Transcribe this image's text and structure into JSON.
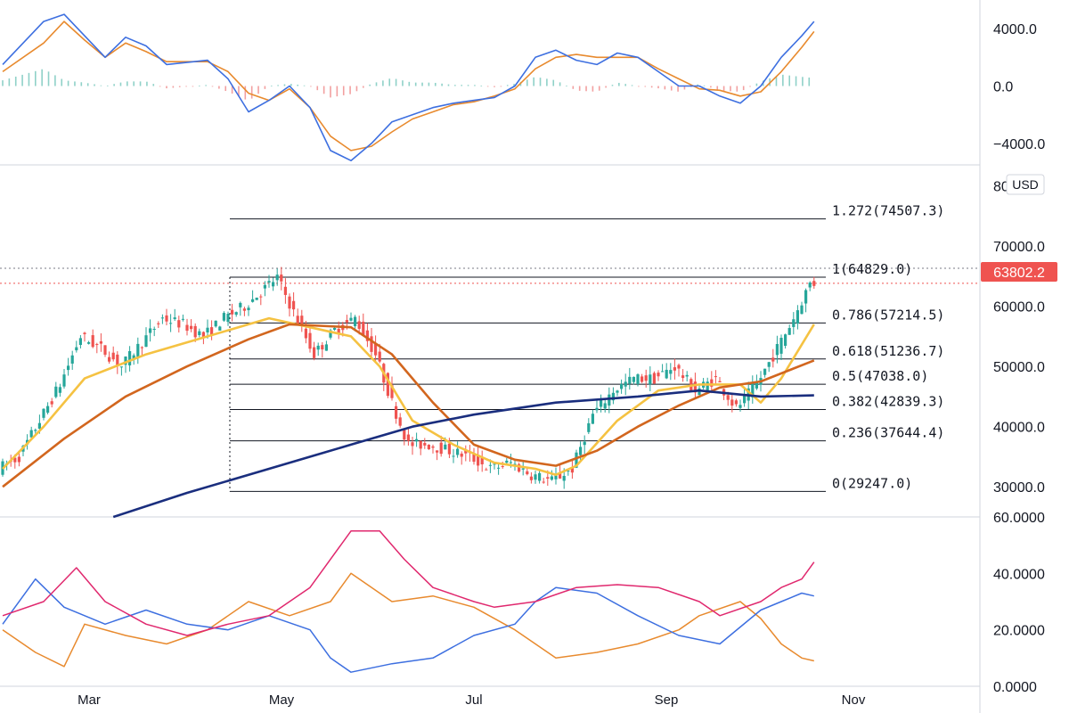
{
  "chart_data": {
    "type": "candlestick",
    "currency": "USD",
    "current_price": {
      "value": 63802.2,
      "label": "63802.2",
      "color": "#ef5350"
    },
    "x_axis": {
      "tick_labels": [
        "Mar",
        "May",
        "Jul",
        "Sep",
        "Nov"
      ]
    },
    "price_axis": {
      "range": [
        25000,
        82000
      ],
      "tick_values": [
        30000,
        40000,
        50000,
        60000,
        70000,
        80000
      ],
      "tick_labels": [
        "30000.0",
        "40000.0",
        "50000.0",
        "60000.0",
        "70000.0",
        "80000.0"
      ]
    },
    "macd_axis": {
      "range": [
        -5500,
        6000
      ],
      "tick_values": [
        4000,
        0,
        -4000
      ],
      "tick_labels": [
        "4000.0",
        "0.0",
        "−4000.0"
      ]
    },
    "dmi_axis": {
      "range": [
        0,
        60
      ],
      "tick_values": [
        60,
        40,
        20,
        0
      ],
      "tick_labels": [
        "60.0000",
        "40.0000",
        "20.0000",
        "0.0000"
      ]
    },
    "fibonacci": [
      {
        "label": "1.272(74507.3)",
        "price": 74507.3
      },
      {
        "label": "1(64829.0)",
        "price": 64829.0
      },
      {
        "label": "0.786(57214.5)",
        "price": 57214.5
      },
      {
        "label": "0.618(51236.7)",
        "price": 51236.7
      },
      {
        "label": "0.5(47038.0)",
        "price": 47038.0
      },
      {
        "label": "0.382(42839.3)",
        "price": 42839.3
      },
      {
        "label": "0.236(37644.4)",
        "price": 37644.4
      },
      {
        "label": "0(29247.0)",
        "price": 29247.0
      }
    ],
    "price_path": [
      [
        0,
        33000
      ],
      [
        5,
        35000
      ],
      [
        10,
        41000
      ],
      [
        15,
        47000
      ],
      [
        20,
        55000
      ],
      [
        25,
        53000
      ],
      [
        30,
        50000
      ],
      [
        35,
        54000
      ],
      [
        40,
        58000
      ],
      [
        45,
        57000
      ],
      [
        50,
        55000
      ],
      [
        55,
        58000
      ],
      [
        60,
        60000
      ],
      [
        65,
        63000
      ],
      [
        68,
        64800
      ],
      [
        72,
        59000
      ],
      [
        77,
        52000
      ],
      [
        82,
        56000
      ],
      [
        87,
        58000
      ],
      [
        92,
        52000
      ],
      [
        96,
        44000
      ],
      [
        100,
        37000
      ],
      [
        105,
        37000
      ],
      [
        110,
        36000
      ],
      [
        115,
        35000
      ],
      [
        120,
        33000
      ],
      [
        125,
        34000
      ],
      [
        130,
        32000
      ],
      [
        135,
        31000
      ],
      [
        140,
        33000
      ],
      [
        145,
        42000
      ],
      [
        150,
        46000
      ],
      [
        155,
        48000
      ],
      [
        160,
        48000
      ],
      [
        165,
        50000
      ],
      [
        170,
        46000
      ],
      [
        175,
        48000
      ],
      [
        180,
        43000
      ],
      [
        185,
        47000
      ],
      [
        190,
        53000
      ],
      [
        194,
        58000
      ],
      [
        198,
        63800
      ]
    ],
    "moving_averages": [
      {
        "color": "#f5c242",
        "points": [
          [
            0,
            33000
          ],
          [
            10,
            40000
          ],
          [
            20,
            48000
          ],
          [
            35,
            52000
          ],
          [
            50,
            55000
          ],
          [
            65,
            58000
          ],
          [
            75,
            56500
          ],
          [
            85,
            55000
          ],
          [
            92,
            50000
          ],
          [
            100,
            41000
          ],
          [
            110,
            37000
          ],
          [
            120,
            34000
          ],
          [
            130,
            33000
          ],
          [
            135,
            32000
          ],
          [
            140,
            33500
          ],
          [
            150,
            41000
          ],
          [
            160,
            46000
          ],
          [
            170,
            47000
          ],
          [
            180,
            47000
          ],
          [
            185,
            44000
          ],
          [
            190,
            48000
          ],
          [
            198,
            57000
          ]
        ]
      },
      {
        "color": "#d2661e",
        "points": [
          [
            0,
            30000
          ],
          [
            15,
            38000
          ],
          [
            30,
            45000
          ],
          [
            45,
            50000
          ],
          [
            60,
            54500
          ],
          [
            70,
            57000
          ],
          [
            85,
            56500
          ],
          [
            95,
            52000
          ],
          [
            105,
            44000
          ],
          [
            115,
            37000
          ],
          [
            125,
            34500
          ],
          [
            135,
            33500
          ],
          [
            145,
            36000
          ],
          [
            155,
            40000
          ],
          [
            165,
            43500
          ],
          [
            175,
            46500
          ],
          [
            185,
            47500
          ],
          [
            198,
            51000
          ]
        ]
      },
      {
        "color": "#1a2e7e",
        "points": [
          [
            27,
            25000
          ],
          [
            45,
            29000
          ],
          [
            65,
            33000
          ],
          [
            85,
            37000
          ],
          [
            100,
            40000
          ],
          [
            115,
            42000
          ],
          [
            135,
            44000
          ],
          [
            155,
            45000
          ],
          [
            170,
            46000
          ],
          [
            185,
            45000
          ],
          [
            198,
            45200
          ]
        ]
      }
    ],
    "macd": {
      "macd_line": {
        "color": "#3d6fe0",
        "points": [
          [
            0,
            1500
          ],
          [
            10,
            4500
          ],
          [
            15,
            5000
          ],
          [
            20,
            3500
          ],
          [
            25,
            2000
          ],
          [
            30,
            3400
          ],
          [
            35,
            2800
          ],
          [
            40,
            1500
          ],
          [
            50,
            1800
          ],
          [
            55,
            500
          ],
          [
            60,
            -1800
          ],
          [
            65,
            -1000
          ],
          [
            70,
            0
          ],
          [
            75,
            -1500
          ],
          [
            80,
            -4500
          ],
          [
            85,
            -5200
          ],
          [
            90,
            -4000
          ],
          [
            95,
            -2500
          ],
          [
            100,
            -2000
          ],
          [
            105,
            -1500
          ],
          [
            110,
            -1200
          ],
          [
            115,
            -1000
          ],
          [
            120,
            -800
          ],
          [
            125,
            0
          ],
          [
            130,
            2000
          ],
          [
            135,
            2500
          ],
          [
            140,
            1800
          ],
          [
            145,
            1500
          ],
          [
            150,
            2300
          ],
          [
            155,
            2000
          ],
          [
            160,
            1000
          ],
          [
            165,
            0
          ],
          [
            170,
            0
          ],
          [
            175,
            -700
          ],
          [
            180,
            -1200
          ],
          [
            185,
            0
          ],
          [
            190,
            2000
          ],
          [
            195,
            3500
          ],
          [
            198,
            4500
          ]
        ]
      },
      "signal_line": {
        "color": "#e88a2e",
        "points": [
          [
            0,
            1000
          ],
          [
            10,
            3000
          ],
          [
            15,
            4500
          ],
          [
            20,
            3200
          ],
          [
            25,
            2000
          ],
          [
            30,
            3000
          ],
          [
            35,
            2400
          ],
          [
            40,
            1700
          ],
          [
            50,
            1700
          ],
          [
            55,
            1000
          ],
          [
            60,
            -500
          ],
          [
            65,
            -1000
          ],
          [
            70,
            -200
          ],
          [
            75,
            -1500
          ],
          [
            80,
            -3500
          ],
          [
            85,
            -4500
          ],
          [
            90,
            -4200
          ],
          [
            95,
            -3200
          ],
          [
            100,
            -2300
          ],
          [
            105,
            -1800
          ],
          [
            110,
            -1300
          ],
          [
            115,
            -1100
          ],
          [
            120,
            -700
          ],
          [
            125,
            -200
          ],
          [
            130,
            1200
          ],
          [
            135,
            2000
          ],
          [
            140,
            2200
          ],
          [
            145,
            2000
          ],
          [
            150,
            2000
          ],
          [
            155,
            2000
          ],
          [
            160,
            1200
          ],
          [
            165,
            500
          ],
          [
            170,
            -200
          ],
          [
            175,
            -300
          ],
          [
            180,
            -700
          ],
          [
            185,
            -400
          ],
          [
            190,
            1000
          ],
          [
            195,
            2700
          ],
          [
            198,
            3800
          ]
        ]
      }
    },
    "dmi": {
      "adx": {
        "color": "#e0286e",
        "points": [
          [
            0,
            25
          ],
          [
            10,
            30
          ],
          [
            18,
            42
          ],
          [
            25,
            30
          ],
          [
            35,
            22
          ],
          [
            45,
            18
          ],
          [
            55,
            22
          ],
          [
            65,
            25
          ],
          [
            75,
            35
          ],
          [
            85,
            55
          ],
          [
            92,
            55
          ],
          [
            98,
            45
          ],
          [
            105,
            35
          ],
          [
            115,
            30
          ],
          [
            120,
            28
          ],
          [
            130,
            30
          ],
          [
            140,
            35
          ],
          [
            150,
            36
          ],
          [
            160,
            35
          ],
          [
            170,
            30
          ],
          [
            175,
            25
          ],
          [
            185,
            30
          ],
          [
            190,
            35
          ],
          [
            195,
            38
          ],
          [
            198,
            44
          ]
        ]
      },
      "plus_di": {
        "color": "#3d6fe0",
        "points": [
          [
            0,
            22
          ],
          [
            8,
            38
          ],
          [
            15,
            28
          ],
          [
            25,
            22
          ],
          [
            35,
            27
          ],
          [
            45,
            22
          ],
          [
            55,
            20
          ],
          [
            65,
            25
          ],
          [
            75,
            20
          ],
          [
            80,
            10
          ],
          [
            85,
            5
          ],
          [
            95,
            8
          ],
          [
            105,
            10
          ],
          [
            115,
            18
          ],
          [
            125,
            22
          ],
          [
            130,
            30
          ],
          [
            135,
            35
          ],
          [
            145,
            33
          ],
          [
            155,
            25
          ],
          [
            165,
            18
          ],
          [
            175,
            15
          ],
          [
            185,
            27
          ],
          [
            190,
            30
          ],
          [
            195,
            33
          ],
          [
            198,
            32
          ]
        ]
      },
      "minus_di": {
        "color": "#e88a2e",
        "points": [
          [
            0,
            20
          ],
          [
            8,
            12
          ],
          [
            15,
            7
          ],
          [
            20,
            22
          ],
          [
            30,
            18
          ],
          [
            40,
            15
          ],
          [
            50,
            20
          ],
          [
            60,
            30
          ],
          [
            70,
            25
          ],
          [
            80,
            30
          ],
          [
            85,
            40
          ],
          [
            95,
            30
          ],
          [
            105,
            32
          ],
          [
            115,
            28
          ],
          [
            125,
            20
          ],
          [
            130,
            15
          ],
          [
            135,
            10
          ],
          [
            145,
            12
          ],
          [
            155,
            15
          ],
          [
            165,
            20
          ],
          [
            170,
            25
          ],
          [
            180,
            30
          ],
          [
            185,
            24
          ],
          [
            190,
            15
          ],
          [
            195,
            10
          ],
          [
            198,
            9
          ]
        ]
      }
    }
  }
}
